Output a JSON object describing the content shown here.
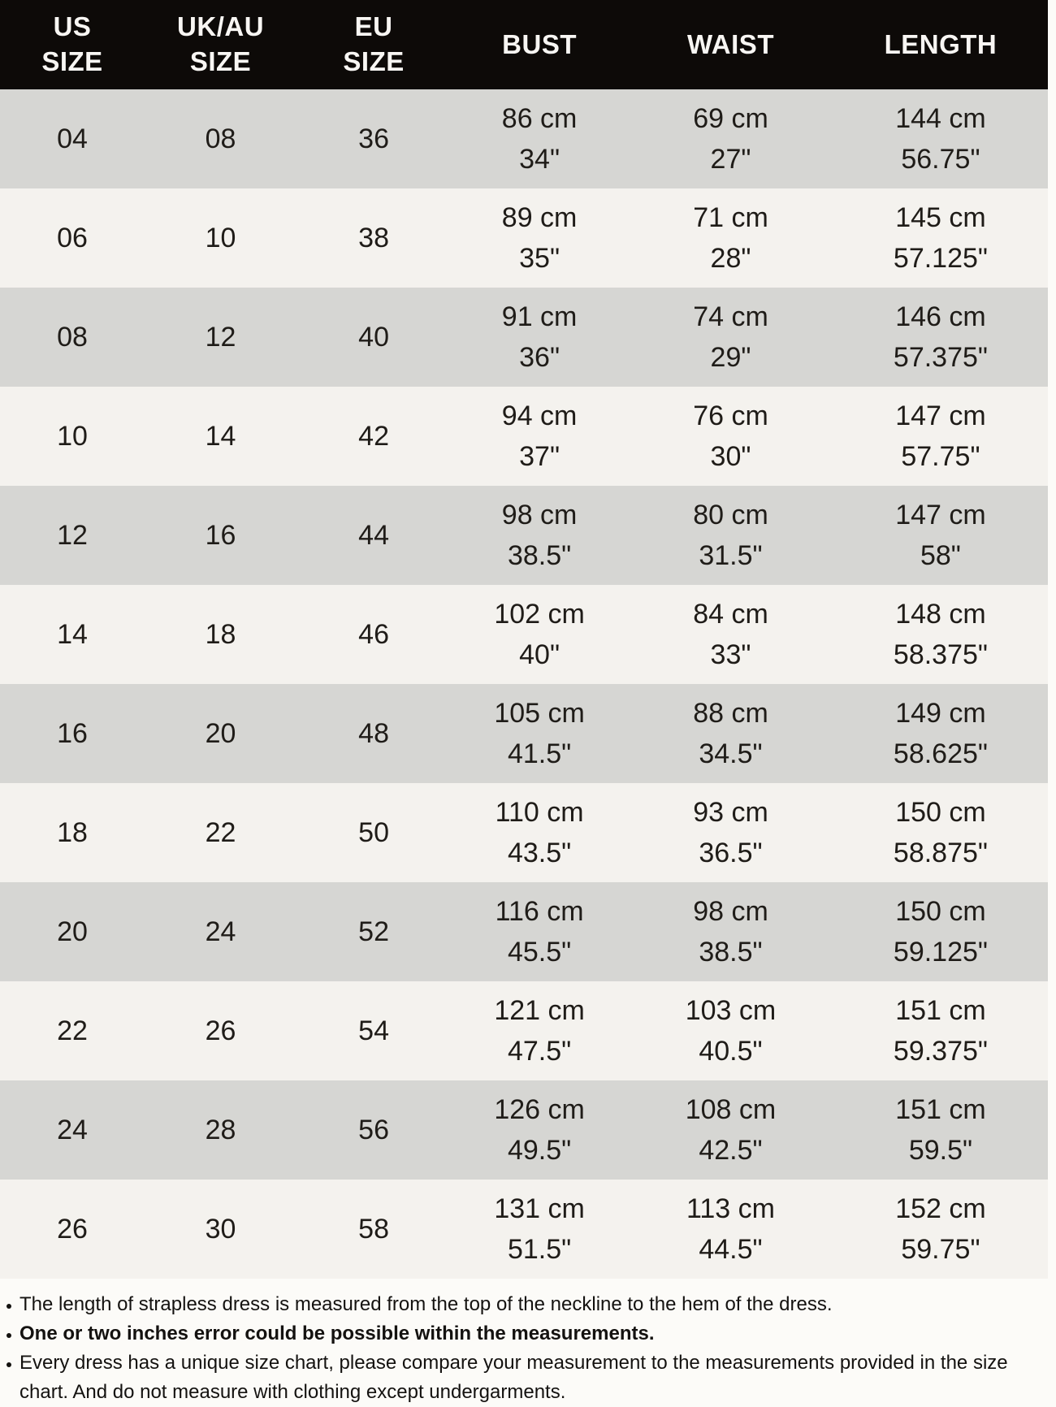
{
  "table": {
    "headers": [
      "US\nSIZE",
      "UK/AU\nSIZE",
      "EU\nSIZE",
      "BUST",
      "WAIST",
      "LENGTH"
    ],
    "rows": [
      [
        "04",
        "08",
        "36",
        "86 cm\n34\"",
        "69 cm\n27\"",
        "144 cm\n56.75\""
      ],
      [
        "06",
        "10",
        "38",
        "89 cm\n35\"",
        "71 cm\n28\"",
        "145 cm\n57.125\""
      ],
      [
        "08",
        "12",
        "40",
        "91 cm\n36\"",
        "74 cm\n29\"",
        "146 cm\n57.375\""
      ],
      [
        "10",
        "14",
        "42",
        "94 cm\n37\"",
        "76 cm\n30\"",
        "147 cm\n57.75\""
      ],
      [
        "12",
        "16",
        "44",
        "98 cm\n38.5\"",
        "80 cm\n31.5\"",
        "147 cm\n58\""
      ],
      [
        "14",
        "18",
        "46",
        "102 cm\n40\"",
        "84 cm\n33\"",
        "148 cm\n58.375\""
      ],
      [
        "16",
        "20",
        "48",
        "105 cm\n41.5\"",
        "88 cm\n34.5\"",
        "149 cm\n58.625\""
      ],
      [
        "18",
        "22",
        "50",
        "110 cm\n43.5\"",
        "93 cm\n36.5\"",
        "150 cm\n58.875\""
      ],
      [
        "20",
        "24",
        "52",
        "116 cm\n45.5\"",
        "98 cm\n38.5\"",
        "150 cm\n59.125\""
      ],
      [
        "22",
        "26",
        "54",
        "121 cm\n47.5\"",
        "103 cm\n40.5\"",
        "151 cm\n59.375\""
      ],
      [
        "24",
        "28",
        "56",
        "126 cm\n49.5\"",
        "108 cm\n42.5\"",
        "151 cm\n59.5\""
      ],
      [
        "26",
        "30",
        "58",
        "131 cm\n51.5\"",
        "113 cm\n44.5\"",
        "152 cm\n59.75\""
      ]
    ]
  },
  "notes": [
    {
      "text": "The length of strapless dress is measured from the top of the neckline to the hem of the dress."
    },
    {
      "text": "One or two inches error could be possible within the measurements."
    },
    {
      "text": "Every dress has a unique size chart, please compare your measurement to the measurements provided in the size chart. And do not measure with clothing except undergarments."
    }
  ],
  "colors": {
    "header_bg": "#0d0a08",
    "header_text": "#f8f6f3",
    "row_light": "#f4f2ee",
    "row_dark": "#d6d6d3",
    "page_bg": "#fcfbf8",
    "text": "#1f1c18"
  }
}
